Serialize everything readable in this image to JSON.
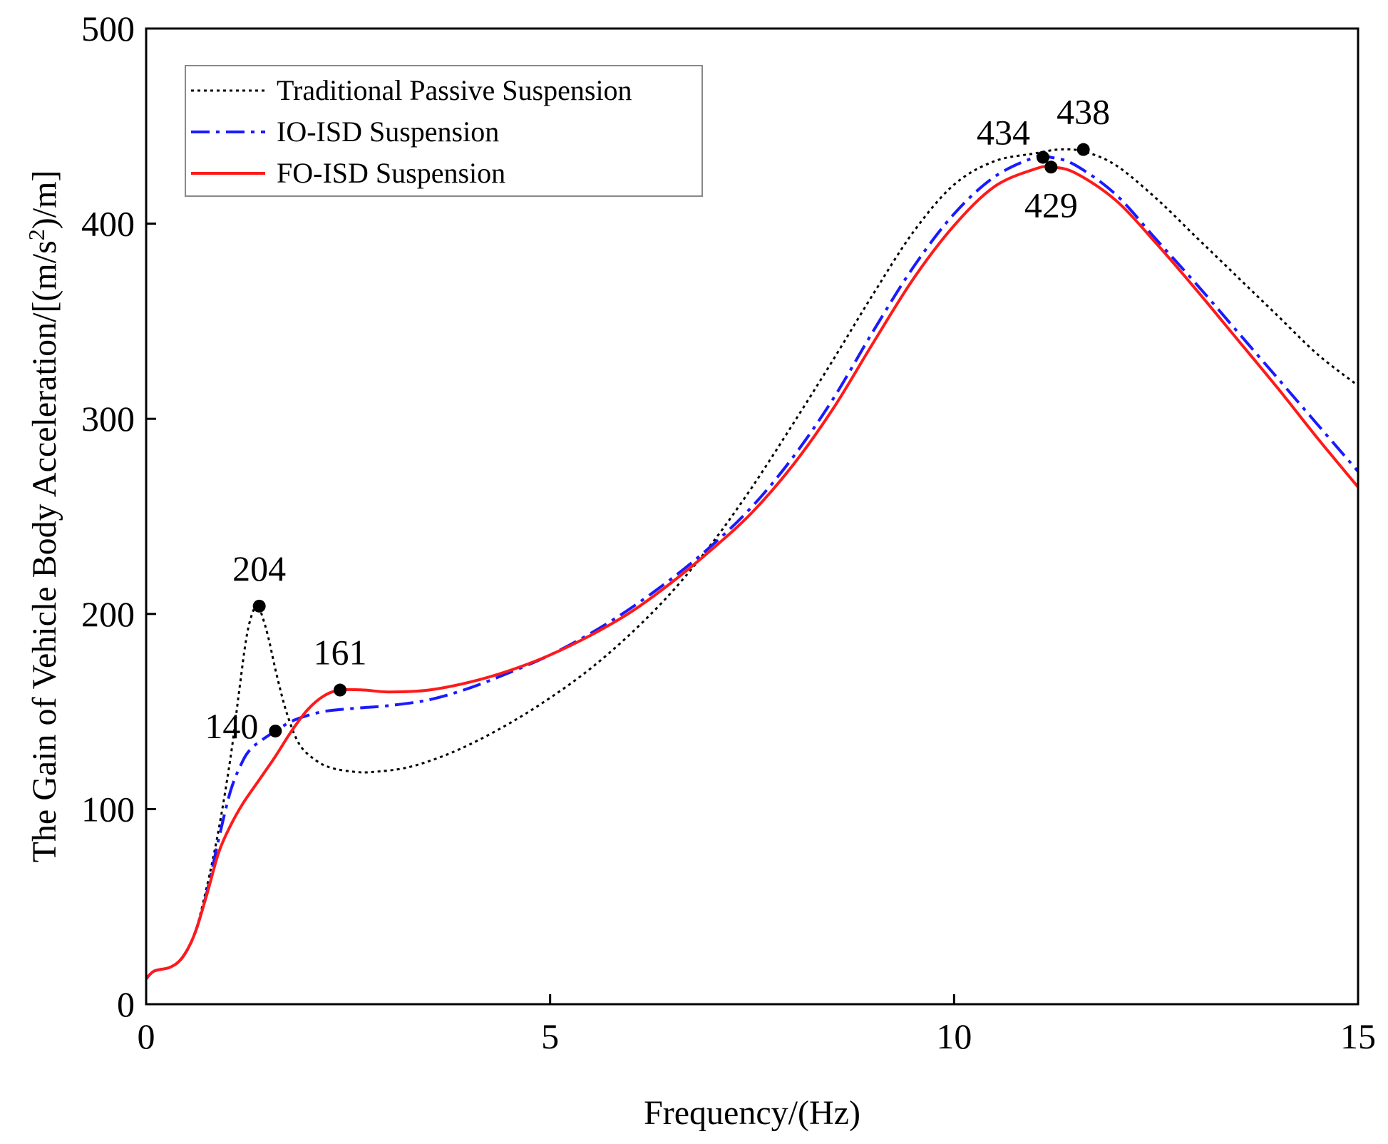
{
  "chart_data": {
    "type": "line",
    "title": "",
    "xlabel": "Frequency/(Hz)",
    "ylabel_parts": [
      "The Gain of Vehicle Body Acceleration/[(m/s",
      "2",
      ")/m]"
    ],
    "xlim": [
      0,
      15
    ],
    "ylim": [
      0,
      500
    ],
    "xticks": [
      0,
      5,
      10,
      15
    ],
    "yticks": [
      0,
      100,
      200,
      300,
      400,
      500
    ],
    "grid": false,
    "legend_position": "top-left",
    "series": [
      {
        "name": "Traditional Passive Suspension",
        "color": "#000000",
        "style": "dotted",
        "x": [
          0,
          0.1,
          0.3,
          0.45,
          0.6,
          0.75,
          0.9,
          1.05,
          1.15,
          1.25,
          1.35,
          1.4,
          1.5,
          1.62,
          1.75,
          1.9,
          2.1,
          2.3,
          2.6,
          2.8,
          3.2,
          3.6,
          4.0,
          4.5,
          5.0,
          5.5,
          6.0,
          6.5,
          7.0,
          7.5,
          8.0,
          8.5,
          9.0,
          9.5,
          10.0,
          10.5,
          11.0,
          11.3,
          11.6,
          12.0,
          12.5,
          13.0,
          13.5,
          14.0,
          14.5,
          15.0
        ],
        "y": [
          13,
          17,
          19,
          24,
          36,
          60,
          90,
          128,
          160,
          190,
          204,
          203,
          190,
          168,
          148,
          133,
          125,
          121,
          119,
          119,
          121,
          126,
          133,
          144,
          157,
          172,
          190,
          211,
          236,
          265,
          297,
          330,
          364,
          396,
          420,
          432,
          436,
          438,
          437,
          430,
          413,
          393,
          373,
          353,
          333,
          317
        ]
      },
      {
        "name": "IO-ISD Suspension",
        "color": "#1a1aff",
        "style": "dashdot",
        "x": [
          0,
          0.1,
          0.3,
          0.45,
          0.6,
          0.75,
          0.9,
          1.05,
          1.2,
          1.3,
          1.42,
          1.6,
          1.8,
          2.0,
          2.2,
          2.4,
          2.7,
          3.0,
          3.5,
          4.0,
          4.5,
          5.0,
          5.5,
          6.0,
          6.5,
          7.0,
          7.5,
          8.0,
          8.5,
          9.0,
          9.5,
          10.0,
          10.5,
          11.0,
          11.2,
          11.5,
          12.0,
          12.5,
          13.0,
          13.5,
          14.0,
          14.5,
          15.0
        ],
        "y": [
          13,
          17,
          19,
          24,
          36,
          57,
          85,
          110,
          125,
          131,
          135,
          140,
          145,
          148,
          150,
          151,
          152,
          153,
          156,
          162,
          170,
          179,
          190,
          203,
          218,
          235,
          255,
          280,
          310,
          345,
          378,
          405,
          424,
          434,
          434,
          430,
          415,
          392,
          369,
          345,
          321,
          297,
          273
        ]
      },
      {
        "name": "FO-ISD Suspension",
        "color": "#ff1a1a",
        "style": "solid",
        "x": [
          0,
          0.1,
          0.3,
          0.45,
          0.6,
          0.75,
          0.9,
          1.05,
          1.2,
          1.4,
          1.6,
          1.8,
          2.0,
          2.2,
          2.4,
          2.7,
          3.0,
          3.5,
          4.0,
          4.5,
          5.0,
          5.5,
          6.0,
          6.5,
          7.0,
          7.5,
          8.0,
          8.5,
          9.0,
          9.5,
          10.0,
          10.5,
          11.0,
          11.2,
          11.5,
          12.0,
          12.5,
          13.0,
          13.5,
          14.0,
          14.5,
          15.0
        ],
        "y": [
          13,
          17,
          19,
          24,
          36,
          56,
          78,
          92,
          103,
          115,
          127,
          140,
          151,
          158,
          161,
          161,
          160,
          161,
          165,
          171,
          179,
          189,
          201,
          216,
          233,
          252,
          276,
          305,
          339,
          372,
          399,
          419,
          428,
          429,
          426,
          412,
          390,
          366,
          341,
          316,
          290,
          265
        ]
      }
    ],
    "markers": [
      {
        "series": "Traditional Passive Suspension",
        "x": 1.4,
        "y": 204
      },
      {
        "series": "IO-ISD Suspension",
        "x": 1.6,
        "y": 140
      },
      {
        "series": "FO-ISD Suspension",
        "x": 2.4,
        "y": 161
      },
      {
        "series": "IO-ISD Suspension",
        "x": 11.1,
        "y": 434
      },
      {
        "series": "FO-ISD Suspension",
        "x": 11.2,
        "y": 429
      },
      {
        "series": "Traditional Passive Suspension",
        "x": 11.6,
        "y": 438
      }
    ],
    "annotations": [
      {
        "text": "204",
        "anchor_x": 1.4,
        "anchor_y": 204,
        "placement": "above"
      },
      {
        "text": "140",
        "anchor_x": 1.6,
        "anchor_y": 140,
        "placement": "left"
      },
      {
        "text": "161",
        "anchor_x": 2.4,
        "anchor_y": 161,
        "placement": "above"
      },
      {
        "text": "434",
        "anchor_x": 11.1,
        "anchor_y": 434,
        "placement": "upper-left"
      },
      {
        "text": "429",
        "anchor_x": 11.2,
        "anchor_y": 429,
        "placement": "below"
      },
      {
        "text": "438",
        "anchor_x": 11.6,
        "anchor_y": 438,
        "placement": "above"
      }
    ]
  }
}
